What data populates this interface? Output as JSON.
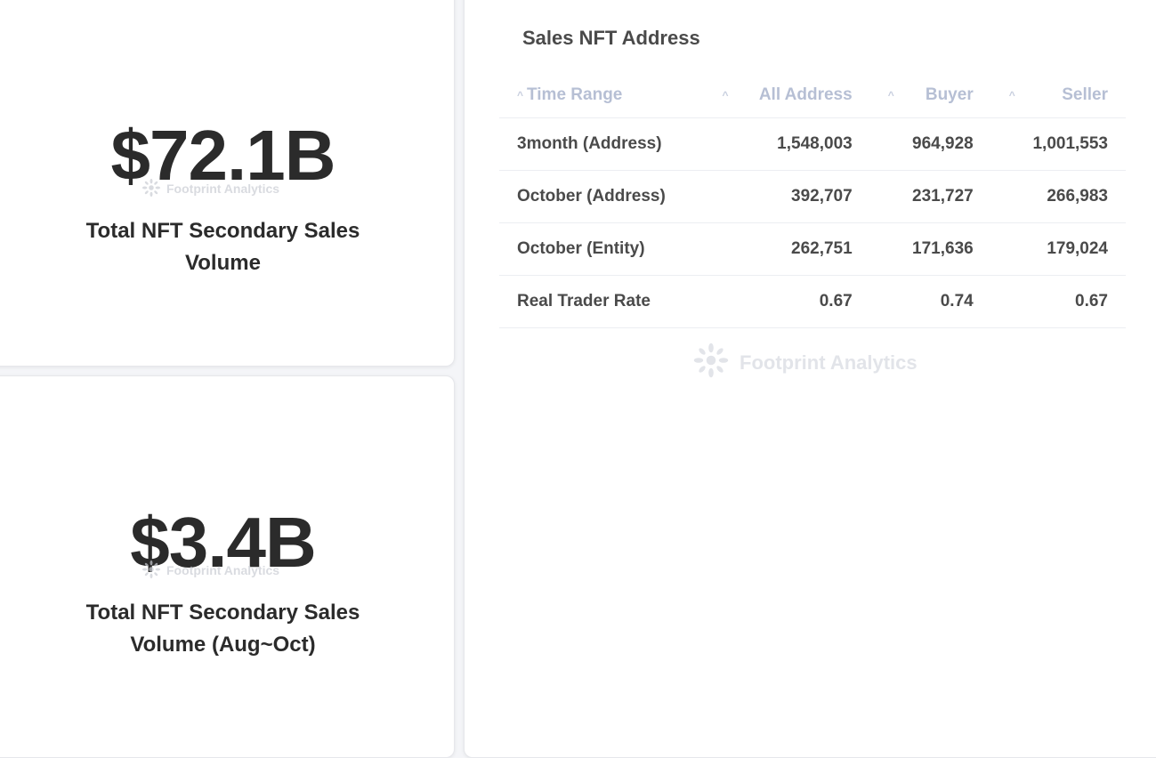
{
  "metrics": [
    {
      "value": "$72.1B",
      "label": "Total NFT Secondary Sales Volume"
    },
    {
      "value": "$3.4B",
      "label": "Total NFT Secondary Sales Volume (Aug~Oct)"
    }
  ],
  "watermark": "Footprint Analytics",
  "table": {
    "title": "Sales NFT Address",
    "columns": [
      "Time Range",
      "All Address",
      "Buyer",
      "Seller"
    ],
    "rows": [
      [
        "3month (Address)",
        "1,548,003",
        "964,928",
        "1,001,553"
      ],
      [
        "October (Address)",
        "392,707",
        "231,727",
        "266,983"
      ],
      [
        "October (Entity)",
        "262,751",
        "171,636",
        "179,024"
      ],
      [
        "Real Trader Rate",
        "0.67",
        "0.74",
        "0.67"
      ]
    ]
  }
}
